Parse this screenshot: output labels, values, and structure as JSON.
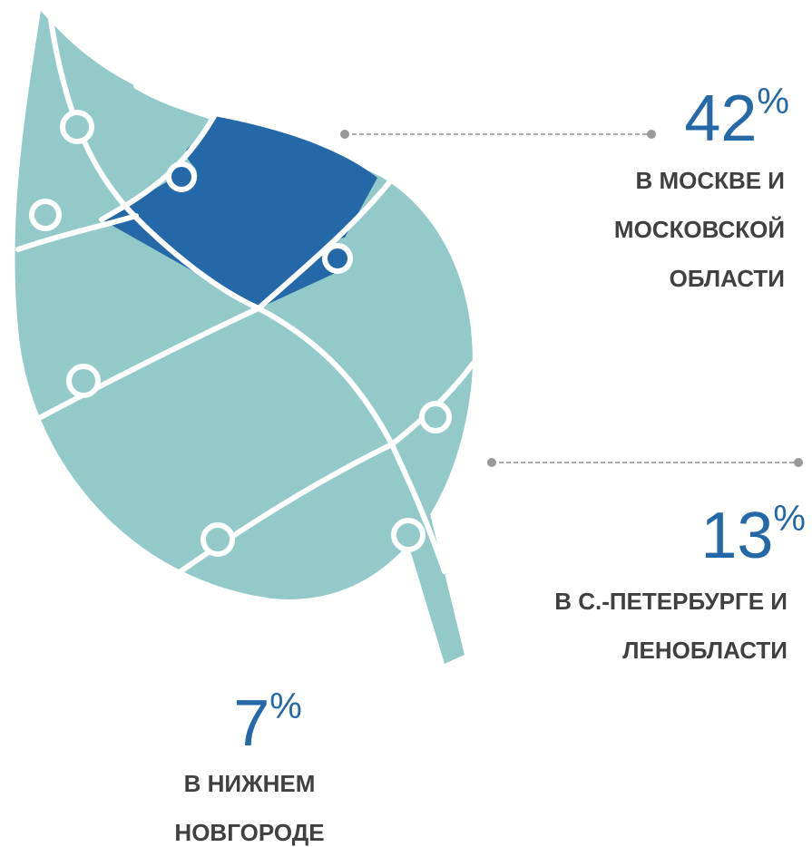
{
  "items": [
    {
      "value": "42",
      "unit": "%",
      "label_lines": [
        "В МОСКВЕ И",
        "МОСКОВСКОЙ",
        "ОБЛАСТИ"
      ]
    },
    {
      "value": "13",
      "unit": "%",
      "label_lines": [
        "В С.-ПЕТЕРБУРГЕ И",
        "ЛЕНОБЛАСТИ"
      ]
    },
    {
      "value": "7",
      "unit": "%",
      "label_lines": [
        "В НИЖНЕМ",
        "НОВГОРОДЕ"
      ]
    }
  ]
}
